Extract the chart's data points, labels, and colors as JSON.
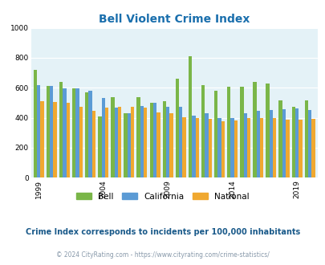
{
  "title": "Bell Violent Crime Index",
  "years": [
    1999,
    2000,
    2001,
    2002,
    2003,
    2004,
    2005,
    2006,
    2007,
    2008,
    2009,
    2010,
    2011,
    2012,
    2013,
    2014,
    2015,
    2016,
    2017,
    2018,
    2019,
    2020
  ],
  "bell": [
    720,
    610,
    640,
    595,
    570,
    410,
    535,
    430,
    535,
    500,
    510,
    660,
    810,
    620,
    580,
    605,
    605,
    640,
    630,
    515,
    470,
    515
  ],
  "california": [
    620,
    610,
    595,
    595,
    580,
    530,
    465,
    430,
    480,
    500,
    470,
    475,
    415,
    430,
    400,
    400,
    430,
    445,
    450,
    455,
    460,
    450
  ],
  "national": [
    510,
    505,
    500,
    470,
    445,
    465,
    470,
    475,
    465,
    435,
    430,
    405,
    395,
    390,
    375,
    380,
    395,
    400,
    400,
    385,
    385,
    390
  ],
  "bell_color": "#7ab648",
  "california_color": "#5b9bd5",
  "national_color": "#f0a830",
  "bg_color": "#e4f2f7",
  "ylim": [
    0,
    1000
  ],
  "yticks": [
    0,
    200,
    400,
    600,
    800,
    1000
  ],
  "xtick_years": [
    1999,
    2004,
    2009,
    2014,
    2019
  ],
  "subtitle": "Crime Index corresponds to incidents per 100,000 inhabitants",
  "footer": "© 2024 CityRating.com - https://www.cityrating.com/crime-statistics/",
  "title_color": "#1a6fad",
  "subtitle_color": "#1a5a8a",
  "footer_color": "#8899aa",
  "bar_width": 0.27
}
